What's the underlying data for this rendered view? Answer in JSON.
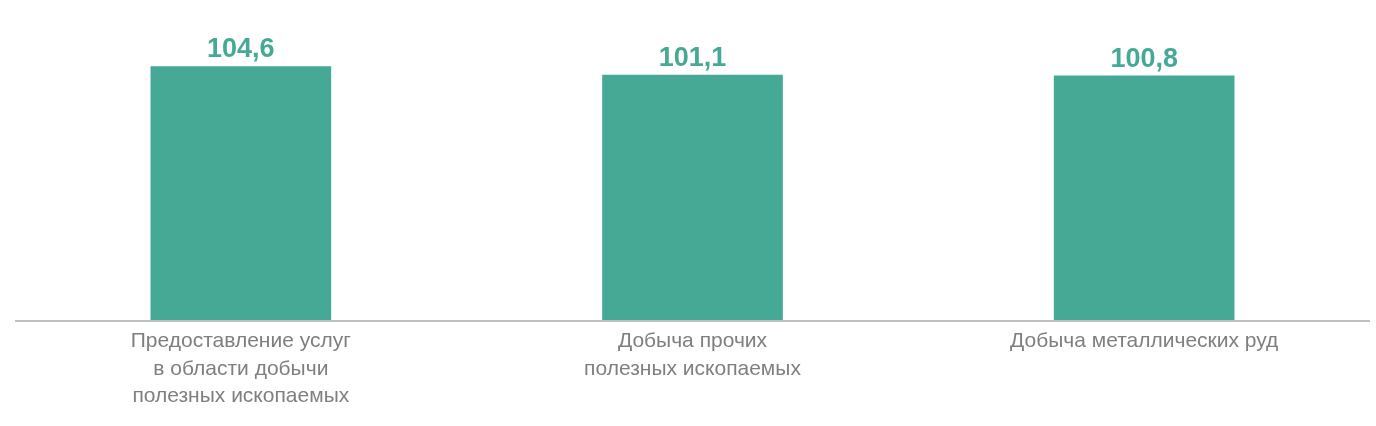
{
  "chart_data": {
    "type": "bar",
    "categories": [
      "Предоставление услуг\nв области добычи\nполезных ископаемых",
      "Добыча прочих\nполезных ископаемых",
      "Добыча металлических руд"
    ],
    "values": [
      104.6,
      101.1,
      100.8
    ],
    "value_labels": [
      "104,6",
      "101,1",
      "100,8"
    ],
    "color": "#46a996"
  }
}
